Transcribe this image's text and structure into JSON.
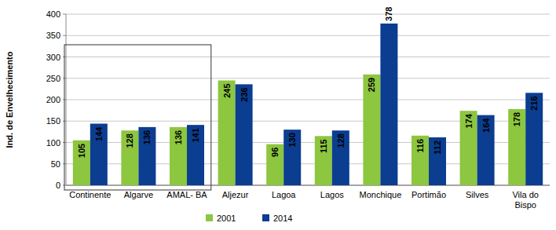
{
  "chart_data": {
    "type": "bar",
    "y_label": "Ind. de Envelhecimento",
    "categories": [
      "Continente",
      "Algarve",
      "AMAL- BA",
      "Aljezur",
      "Lagoa",
      "Lagos",
      "Monchique",
      "Portimão",
      "Silves",
      "Vila do Bispo"
    ],
    "series": [
      {
        "name": "2001",
        "color": "#8dc63f",
        "values": [
          105,
          128,
          136,
          245,
          96,
          115,
          259,
          116,
          174,
          178
        ]
      },
      {
        "name": "2014",
        "color": "#0b3d91",
        "values": [
          144,
          136,
          141,
          236,
          130,
          128,
          378,
          112,
          164,
          216
        ]
      }
    ],
    "ylim": [
      0,
      400
    ],
    "yticks": [
      0,
      50,
      100,
      150,
      200,
      250,
      300,
      350,
      400
    ],
    "grid": true,
    "legend": "bottom",
    "data_labels": true
  }
}
